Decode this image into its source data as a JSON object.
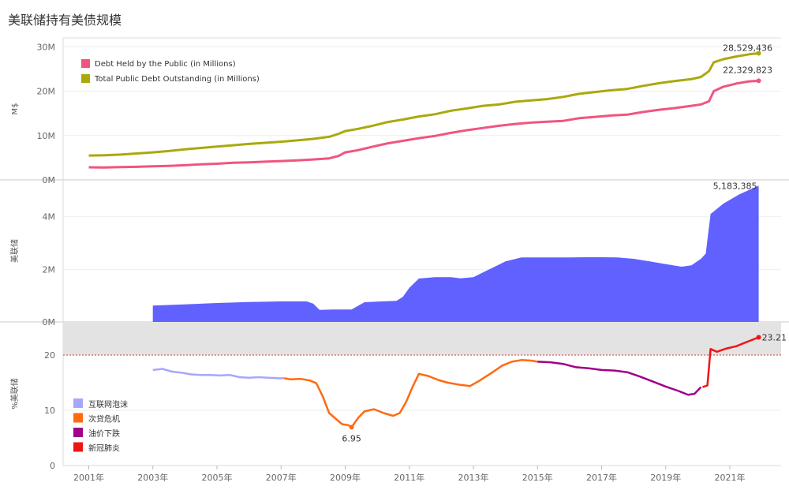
{
  "page": {
    "title": "美联储持有美债规模"
  },
  "chart_data": [
    {
      "type": "line",
      "ylabel": "M$",
      "yticks": [
        "30M",
        "20M",
        "10M",
        "0M"
      ],
      "ylim": [
        0,
        32000000
      ],
      "xlim": [
        2000.2,
        2022.6
      ],
      "grid": true,
      "legend_position": "top-left",
      "series": [
        {
          "name": "Debt Held by the Public (in Millions)",
          "color": "#f0557f",
          "points": [
            [
              2001.0,
              2.85
            ],
            [
              2001.5,
              2.8
            ],
            [
              2002.0,
              2.9
            ],
            [
              2002.5,
              2.95
            ],
            [
              2003.0,
              3.05
            ],
            [
              2003.5,
              3.15
            ],
            [
              2004.0,
              3.3
            ],
            [
              2004.5,
              3.5
            ],
            [
              2005.0,
              3.65
            ],
            [
              2005.5,
              3.85
            ],
            [
              2006.0,
              3.95
            ],
            [
              2006.5,
              4.1
            ],
            [
              2007.0,
              4.25
            ],
            [
              2007.5,
              4.4
            ],
            [
              2008.0,
              4.6
            ],
            [
              2008.5,
              4.85
            ],
            [
              2008.8,
              5.4
            ],
            [
              2009.0,
              6.2
            ],
            [
              2009.4,
              6.7
            ],
            [
              2009.8,
              7.4
            ],
            [
              2010.3,
              8.2
            ],
            [
              2010.8,
              8.8
            ],
            [
              2011.3,
              9.4
            ],
            [
              2011.8,
              9.9
            ],
            [
              2012.3,
              10.6
            ],
            [
              2012.8,
              11.2
            ],
            [
              2013.3,
              11.7
            ],
            [
              2013.8,
              12.2
            ],
            [
              2014.3,
              12.6
            ],
            [
              2014.8,
              12.9
            ],
            [
              2015.3,
              13.1
            ],
            [
              2015.8,
              13.3
            ],
            [
              2016.3,
              13.9
            ],
            [
              2016.8,
              14.2
            ],
            [
              2017.3,
              14.5
            ],
            [
              2017.8,
              14.7
            ],
            [
              2018.3,
              15.3
            ],
            [
              2018.8,
              15.8
            ],
            [
              2019.3,
              16.2
            ],
            [
              2019.8,
              16.7
            ],
            [
              2020.1,
              17.0
            ],
            [
              2020.35,
              17.7
            ],
            [
              2020.5,
              20.0
            ],
            [
              2020.8,
              21.0
            ],
            [
              2021.2,
              21.7
            ],
            [
              2021.6,
              22.2
            ],
            [
              2021.9,
              22.33
            ]
          ]
        },
        {
          "name": "Total Public Debt Outstanding (in Millions)",
          "color": "#a9a90e",
          "points": [
            [
              2001.0,
              5.5
            ],
            [
              2001.5,
              5.55
            ],
            [
              2002.0,
              5.7
            ],
            [
              2002.5,
              5.95
            ],
            [
              2003.0,
              6.2
            ],
            [
              2003.5,
              6.5
            ],
            [
              2004.0,
              6.9
            ],
            [
              2004.5,
              7.2
            ],
            [
              2005.0,
              7.5
            ],
            [
              2005.5,
              7.8
            ],
            [
              2006.0,
              8.1
            ],
            [
              2006.5,
              8.35
            ],
            [
              2007.0,
              8.6
            ],
            [
              2007.5,
              8.9
            ],
            [
              2008.0,
              9.25
            ],
            [
              2008.5,
              9.7
            ],
            [
              2008.8,
              10.4
            ],
            [
              2009.0,
              11.0
            ],
            [
              2009.4,
              11.5
            ],
            [
              2009.8,
              12.1
            ],
            [
              2010.3,
              13.0
            ],
            [
              2010.8,
              13.6
            ],
            [
              2011.3,
              14.3
            ],
            [
              2011.8,
              14.8
            ],
            [
              2012.3,
              15.6
            ],
            [
              2012.8,
              16.1
            ],
            [
              2013.3,
              16.7
            ],
            [
              2013.8,
              17.0
            ],
            [
              2014.3,
              17.6
            ],
            [
              2014.8,
              17.9
            ],
            [
              2015.3,
              18.2
            ],
            [
              2015.8,
              18.7
            ],
            [
              2016.3,
              19.4
            ],
            [
              2016.8,
              19.8
            ],
            [
              2017.3,
              20.2
            ],
            [
              2017.8,
              20.5
            ],
            [
              2018.3,
              21.2
            ],
            [
              2018.8,
              21.8
            ],
            [
              2019.3,
              22.3
            ],
            [
              2019.8,
              22.7
            ],
            [
              2020.1,
              23.2
            ],
            [
              2020.35,
              24.5
            ],
            [
              2020.5,
              26.5
            ],
            [
              2020.8,
              27.2
            ],
            [
              2021.2,
              27.8
            ],
            [
              2021.6,
              28.3
            ],
            [
              2021.9,
              28.53
            ]
          ]
        }
      ],
      "labels": [
        {
          "text": "28,529,436",
          "x": 2021.9,
          "y": 28.53
        },
        {
          "text": "22,329,823",
          "x": 2021.9,
          "y": 22.33
        }
      ]
    },
    {
      "type": "area",
      "ylabel": "美联储",
      "yticks": [
        "4M",
        "2M",
        "0M"
      ],
      "ylim": [
        0,
        5400000
      ],
      "color": "#6161ff",
      "points": [
        [
          2003.0,
          0.62
        ],
        [
          2004.0,
          0.67
        ],
        [
          2005.0,
          0.72
        ],
        [
          2006.0,
          0.76
        ],
        [
          2007.0,
          0.78
        ],
        [
          2007.8,
          0.78
        ],
        [
          2008.0,
          0.7
        ],
        [
          2008.2,
          0.46
        ],
        [
          2008.6,
          0.47
        ],
        [
          2009.2,
          0.47
        ],
        [
          2009.6,
          0.75
        ],
        [
          2010.0,
          0.77
        ],
        [
          2010.6,
          0.8
        ],
        [
          2010.8,
          0.95
        ],
        [
          2011.0,
          1.3
        ],
        [
          2011.3,
          1.65
        ],
        [
          2011.8,
          1.7
        ],
        [
          2012.3,
          1.7
        ],
        [
          2012.6,
          1.66
        ],
        [
          2013.0,
          1.7
        ],
        [
          2013.5,
          2.0
        ],
        [
          2014.0,
          2.3
        ],
        [
          2014.5,
          2.45
        ],
        [
          2015.0,
          2.45
        ],
        [
          2015.5,
          2.45
        ],
        [
          2016.0,
          2.45
        ],
        [
          2016.5,
          2.46
        ],
        [
          2017.0,
          2.46
        ],
        [
          2017.5,
          2.45
        ],
        [
          2018.0,
          2.4
        ],
        [
          2018.5,
          2.3
        ],
        [
          2019.0,
          2.2
        ],
        [
          2019.5,
          2.1
        ],
        [
          2019.8,
          2.15
        ],
        [
          2020.1,
          2.4
        ],
        [
          2020.25,
          2.6
        ],
        [
          2020.4,
          4.1
        ],
        [
          2020.8,
          4.5
        ],
        [
          2021.3,
          4.85
        ],
        [
          2021.9,
          5.18
        ]
      ],
      "labels": [
        {
          "text": "5,183,385",
          "x": 2021.9,
          "y": 5.18
        }
      ]
    },
    {
      "type": "line",
      "ylabel": "%美联储",
      "yticks": [
        "20",
        "10",
        "0"
      ],
      "ylim": [
        0,
        26
      ],
      "reference_line": 20,
      "legend_position": "bottom-left",
      "series": [
        {
          "name": "互联网泡沫",
          "color": "#a7a7fa",
          "points": [
            [
              2003.0,
              17.3
            ],
            [
              2003.3,
              17.5
            ],
            [
              2003.6,
              17.0
            ],
            [
              2003.9,
              16.8
            ],
            [
              2004.2,
              16.5
            ],
            [
              2004.5,
              16.4
            ],
            [
              2004.8,
              16.4
            ],
            [
              2005.1,
              16.3
            ],
            [
              2005.4,
              16.4
            ],
            [
              2005.7,
              16.0
            ],
            [
              2006.0,
              15.9
            ],
            [
              2006.3,
              16.0
            ],
            [
              2006.6,
              15.9
            ],
            [
              2006.9,
              15.8
            ],
            [
              2007.1,
              15.8
            ]
          ]
        },
        {
          "name": "次贷危机",
          "color": "#ff6a10",
          "points": [
            [
              2007.1,
              15.8
            ],
            [
              2007.3,
              15.6
            ],
            [
              2007.6,
              15.7
            ],
            [
              2007.9,
              15.4
            ],
            [
              2008.1,
              14.9
            ],
            [
              2008.3,
              12.5
            ],
            [
              2008.5,
              9.5
            ],
            [
              2008.7,
              8.5
            ],
            [
              2008.9,
              7.5
            ],
            [
              2009.1,
              7.3
            ],
            [
              2009.2,
              6.95
            ],
            [
              2009.4,
              8.6
            ],
            [
              2009.6,
              9.8
            ],
            [
              2009.9,
              10.2
            ],
            [
              2010.2,
              9.5
            ],
            [
              2010.5,
              9.0
            ],
            [
              2010.7,
              9.5
            ],
            [
              2010.9,
              11.5
            ],
            [
              2011.1,
              14.2
            ],
            [
              2011.3,
              16.6
            ],
            [
              2011.6,
              16.2
            ],
            [
              2011.9,
              15.5
            ],
            [
              2012.2,
              15.0
            ],
            [
              2012.6,
              14.6
            ],
            [
              2012.9,
              14.4
            ],
            [
              2013.2,
              15.4
            ],
            [
              2013.6,
              16.9
            ],
            [
              2013.9,
              18.1
            ],
            [
              2014.2,
              18.8
            ],
            [
              2014.5,
              19.1
            ],
            [
              2014.8,
              19.0
            ],
            [
              2015.0,
              18.8
            ]
          ]
        },
        {
          "name": "油价下跌",
          "color": "#a0008a",
          "points": [
            [
              2015.0,
              18.8
            ],
            [
              2015.4,
              18.7
            ],
            [
              2015.8,
              18.4
            ],
            [
              2016.2,
              17.8
            ],
            [
              2016.6,
              17.6
            ],
            [
              2017.0,
              17.3
            ],
            [
              2017.4,
              17.2
            ],
            [
              2017.8,
              16.9
            ],
            [
              2018.2,
              16.1
            ],
            [
              2018.6,
              15.2
            ],
            [
              2019.0,
              14.3
            ],
            [
              2019.4,
              13.5
            ],
            [
              2019.7,
              12.8
            ],
            [
              2019.9,
              13.0
            ],
            [
              2020.1,
              14.2
            ]
          ]
        },
        {
          "name": "新冠肺炎",
          "color": "#ef1414",
          "points": [
            [
              2020.15,
              14.2
            ],
            [
              2020.3,
              14.5
            ],
            [
              2020.4,
              21.1
            ],
            [
              2020.6,
              20.6
            ],
            [
              2020.9,
              21.2
            ],
            [
              2021.2,
              21.6
            ],
            [
              2021.5,
              22.3
            ],
            [
              2021.9,
              23.21
            ]
          ]
        }
      ],
      "labels": [
        {
          "text": "23.21",
          "x": 2021.9,
          "y": 23.21
        },
        {
          "text": "6.95",
          "x": 2009.2,
          "y": 6.95
        }
      ]
    }
  ],
  "x_axis": {
    "ticks": [
      "2001年",
      "2003年",
      "2005年",
      "2007年",
      "2009年",
      "2011年",
      "2013年",
      "2015年",
      "2017年",
      "2019年",
      "2021年"
    ]
  }
}
